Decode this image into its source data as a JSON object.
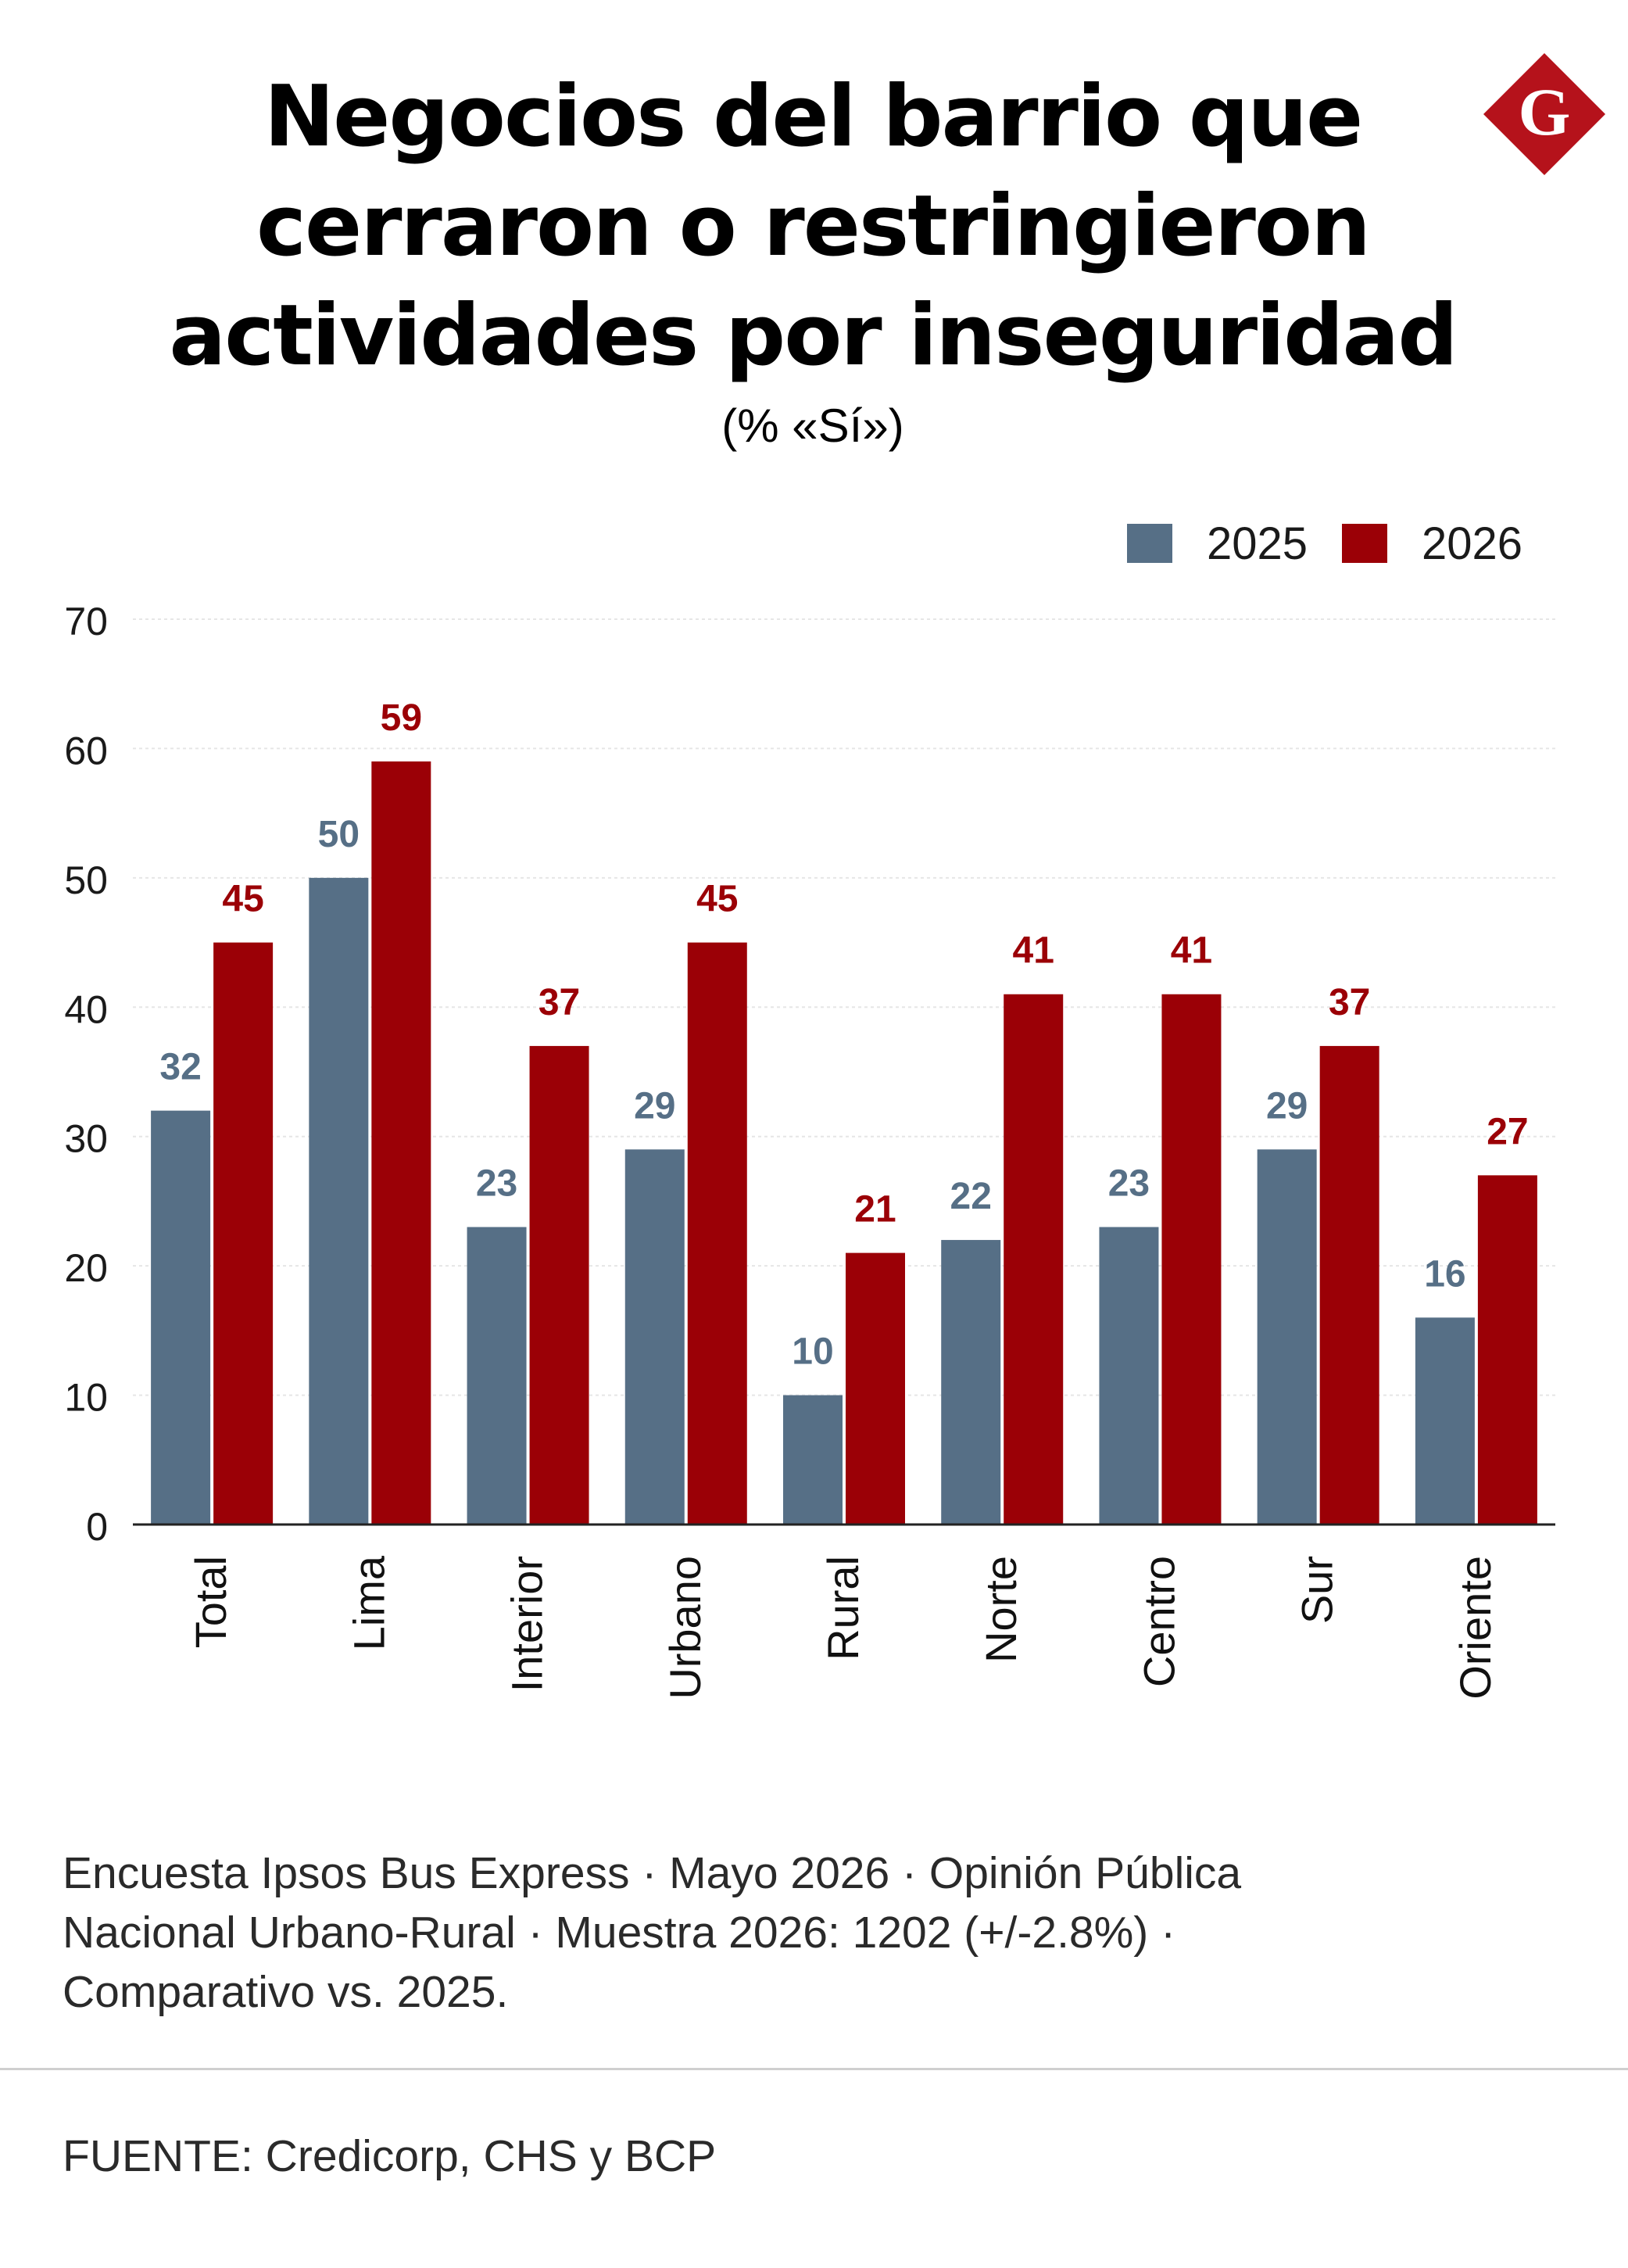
{
  "header": {
    "title_lines": [
      "Negocios del barrio que",
      "cerraron o restringieron",
      "actividades por inseguridad"
    ],
    "subtitle": "(% «Sí»)",
    "logo_letter": "G"
  },
  "colors": {
    "series_2025": "#566f86",
    "series_2026": "#9b0006",
    "grid": "#e6e6e6",
    "axis": "#222222",
    "logo": "#b5121b"
  },
  "chart_data": {
    "type": "bar",
    "categories": [
      "Total",
      "Lima",
      "Interior",
      "Urbano",
      "Rural",
      "Norte",
      "Centro",
      "Sur",
      "Oriente"
    ],
    "series": [
      {
        "name": "2025",
        "values": [
          32,
          50,
          23,
          29,
          10,
          22,
          23,
          29,
          16
        ]
      },
      {
        "name": "2026",
        "values": [
          45,
          59,
          37,
          45,
          21,
          41,
          41,
          37,
          27
        ]
      }
    ],
    "ylim": [
      0,
      70
    ],
    "yticks": [
      0,
      10,
      20,
      30,
      40,
      50,
      60,
      70
    ],
    "grid": true,
    "legend_position": "top-right",
    "data_labels": true
  },
  "footer": {
    "note_lines": [
      "Encuesta Ipsos Bus Express · Mayo 2026 · Opinión Pública",
      "Nacional Urbano-Rural · Muestra 2026: 1202 (+/-2.8%) ·",
      "Comparativo vs. 2025."
    ],
    "source": "FUENTE: Credicorp, CHS y BCP"
  }
}
